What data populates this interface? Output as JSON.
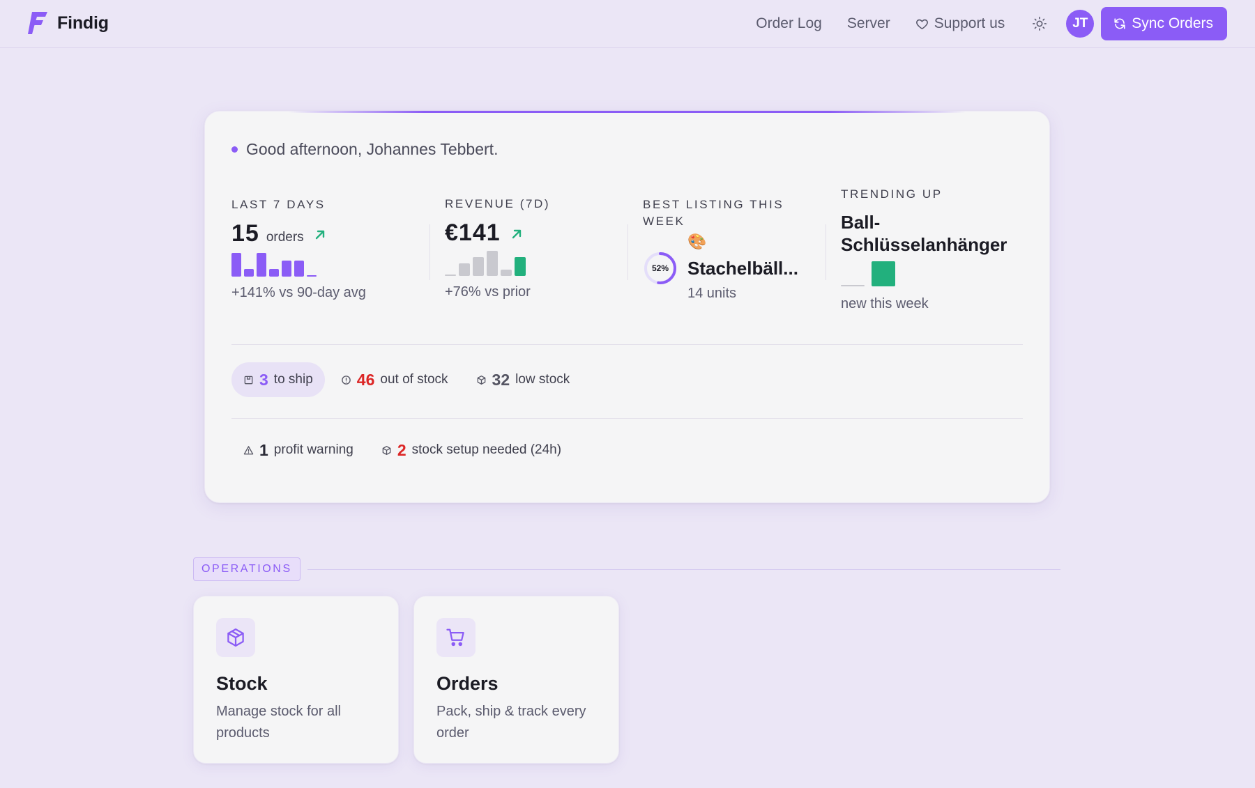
{
  "brand": {
    "name": "Findig",
    "icon": "findig-logo"
  },
  "nav": {
    "order_log": "Order Log",
    "server": "Server",
    "support": "Support us",
    "support_icon": "heart-icon",
    "theme_icon": "sun-icon",
    "avatar_initials": "JT",
    "sync_label": "Sync Orders",
    "sync_icon": "refresh-icon"
  },
  "colors": {
    "accent": "#8b5cf6",
    "positive": "#22b07d",
    "danger": "#dc2626",
    "neutral_bar": "#c9c9cf"
  },
  "summary": {
    "greeting": "Good afternoon, Johannes Tebbert.",
    "orders": {
      "label": "LAST 7 DAYS",
      "value": "15",
      "unit": "orders",
      "trend": "up",
      "delta": "+141% vs 90-day avg",
      "daily_values": [
        3,
        1,
        3,
        1,
        2,
        2,
        0
      ]
    },
    "revenue": {
      "label": "REVENUE (7D)",
      "value": "€141",
      "trend": "up",
      "delta": "+76% vs prior",
      "daily_values": [
        0,
        2,
        3,
        4,
        1,
        3
      ]
    },
    "best_listing": {
      "label": "BEST LISTING THIS WEEK",
      "emoji": "🎨",
      "share_percent": 52,
      "share_label": "52%",
      "name": "Stachelbäll...",
      "units": "14 units"
    },
    "trending": {
      "label": "TRENDING UP",
      "name": "Ball-Schlüsselanhänger",
      "sub": "new this week",
      "values": [
        0,
        1
      ]
    },
    "chips": [
      {
        "icon": "package-icon",
        "count": "3",
        "label": "to ship"
      },
      {
        "icon": "alert-circle-icon",
        "count": "46",
        "label": "out of stock"
      },
      {
        "icon": "box-icon",
        "count": "32",
        "label": "low stock"
      }
    ],
    "warnings": [
      {
        "icon": "warning-triangle-icon",
        "count": "1",
        "label": "profit warning"
      },
      {
        "icon": "box-icon",
        "count": "2",
        "label": "stock setup needed (24h)"
      }
    ]
  },
  "operations": {
    "tag": "OPERATIONS",
    "cards": [
      {
        "icon": "cube-icon",
        "title": "Stock",
        "description": "Manage stock for all products"
      },
      {
        "icon": "cart-icon",
        "title": "Orders",
        "description": "Pack, ship & track every order"
      }
    ]
  }
}
